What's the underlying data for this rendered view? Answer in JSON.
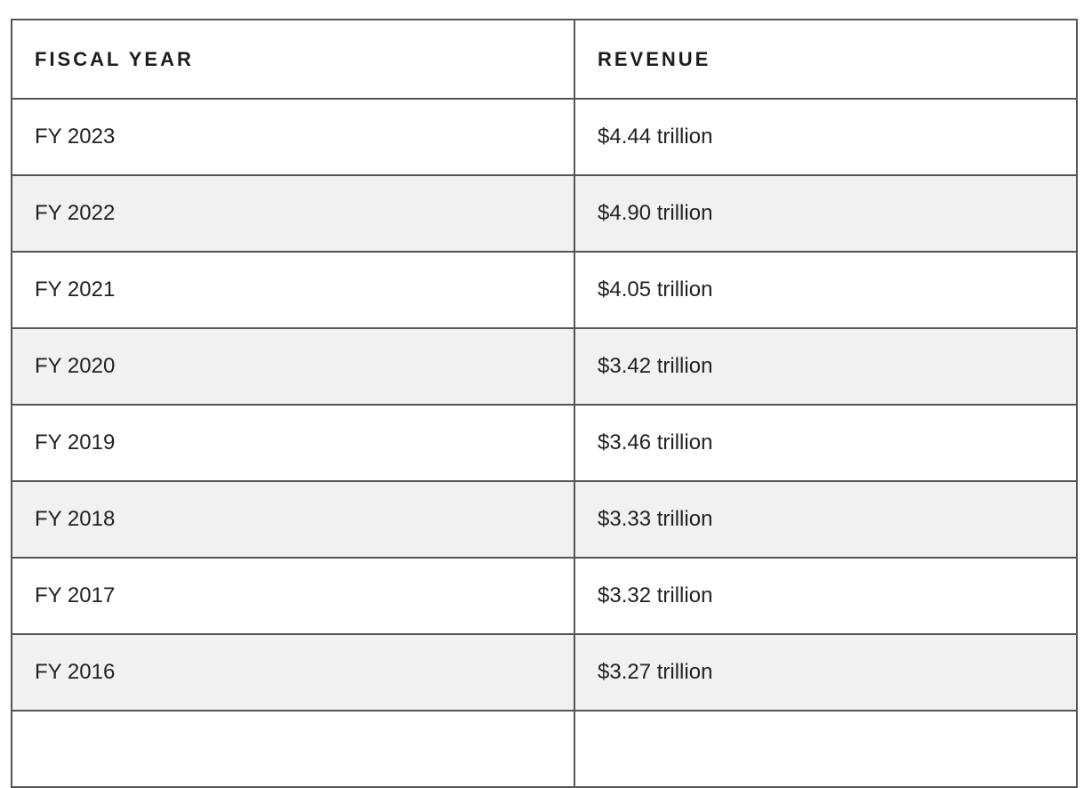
{
  "colors": {
    "border": "#555555",
    "row_alt_bg": "#f1f1f1",
    "row_bg": "#ffffff",
    "header_text": "#1c1c1c",
    "body_text": "#222222",
    "page_bg": "#ffffff"
  },
  "table": {
    "headers": {
      "fiscal_year": "FISCAL YEAR",
      "revenue": "REVENUE"
    },
    "rows": [
      {
        "fiscal_year": "FY 2023",
        "revenue": "$4.44 trillion"
      },
      {
        "fiscal_year": "FY 2022",
        "revenue": "$4.90 trillion"
      },
      {
        "fiscal_year": "FY 2021",
        "revenue": "$4.05 trillion"
      },
      {
        "fiscal_year": "FY 2020",
        "revenue": "$3.42 trillion"
      },
      {
        "fiscal_year": "FY 2019",
        "revenue": "$3.46 trillion"
      },
      {
        "fiscal_year": "FY 2018",
        "revenue": "$3.33 trillion"
      },
      {
        "fiscal_year": "FY 2017",
        "revenue": "$3.32 trillion"
      },
      {
        "fiscal_year": "FY 2016",
        "revenue": "$3.27 trillion"
      }
    ]
  },
  "chart_data": {
    "type": "table",
    "title": "",
    "columns": [
      "FISCAL YEAR",
      "REVENUE"
    ],
    "rows": [
      [
        "FY 2023",
        "$4.44 trillion"
      ],
      [
        "FY 2022",
        "$4.90 trillion"
      ],
      [
        "FY 2021",
        "$4.05 trillion"
      ],
      [
        "FY 2020",
        "$3.42 trillion"
      ],
      [
        "FY 2019",
        "$3.46 trillion"
      ],
      [
        "FY 2018",
        "$3.33 trillion"
      ],
      [
        "FY 2017",
        "$3.32 trillion"
      ],
      [
        "FY 2016",
        "$3.27 trillion"
      ]
    ],
    "revenue_values_trillions_usd": [
      4.44,
      4.9,
      4.05,
      3.42,
      3.46,
      3.33,
      3.32,
      3.27
    ],
    "layout_hints": {
      "striped": true,
      "stripe_start": "second-row",
      "partial_row_cut_off_at_bottom": true
    }
  }
}
